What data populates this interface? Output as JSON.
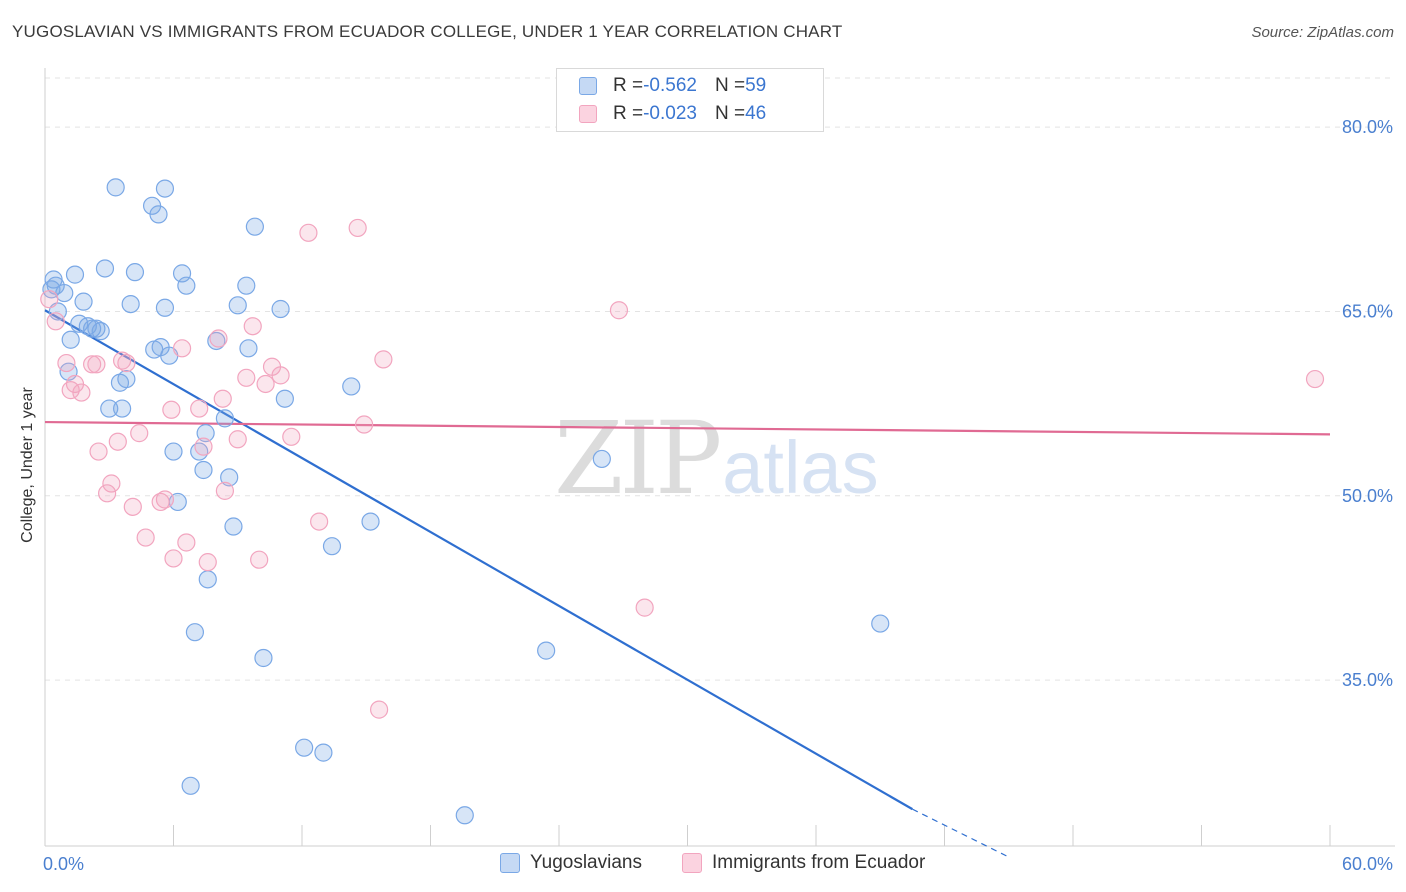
{
  "title": "YUGOSLAVIAN VS IMMIGRANTS FROM ECUADOR COLLEGE, UNDER 1 YEAR CORRELATION CHART",
  "source": "Source: ZipAtlas.com",
  "watermark": {
    "zip": "ZIP",
    "atlas": "atlas"
  },
  "chart_data": {
    "type": "scatter",
    "ylabel": "College, Under 1 year",
    "xlim": [
      0,
      60
    ],
    "ylim": [
      21.5,
      84
    ],
    "x_tick_labels": [
      "0.0%",
      "60.0%"
    ],
    "y_ticks": [
      35,
      50,
      65,
      80
    ],
    "y_tick_labels": [
      "35.0%",
      "50.0%",
      "65.0%",
      "80.0%"
    ],
    "grid": true,
    "legend_position": "top-center",
    "series": [
      {
        "name": "Yugoslavians",
        "color": "#7aa8e6",
        "line_color": "#2f6fd0",
        "R": "-0.562",
        "N": "59",
        "trend": {
          "x0": 0,
          "y0": 65.1,
          "x1": 40.5,
          "y1": 24.5,
          "dash_x1": 45,
          "dash_y1": 20.6
        },
        "points": [
          [
            0.3,
            66.8
          ],
          [
            0.4,
            67.6
          ],
          [
            0.5,
            67.1
          ],
          [
            0.6,
            65.0
          ],
          [
            0.9,
            66.5
          ],
          [
            1.1,
            60.1
          ],
          [
            1.2,
            62.7
          ],
          [
            1.4,
            68.0
          ],
          [
            1.6,
            64.0
          ],
          [
            1.8,
            65.8
          ],
          [
            2.0,
            63.8
          ],
          [
            2.2,
            63.6
          ],
          [
            2.4,
            63.6
          ],
          [
            2.6,
            63.4
          ],
          [
            2.8,
            68.5
          ],
          [
            3.0,
            57.1
          ],
          [
            3.5,
            59.2
          ],
          [
            3.6,
            57.1
          ],
          [
            3.8,
            59.5
          ],
          [
            4.0,
            65.6
          ],
          [
            4.2,
            68.2
          ],
          [
            3.3,
            75.1
          ],
          [
            5.0,
            73.6
          ],
          [
            5.3,
            72.9
          ],
          [
            5.1,
            61.9
          ],
          [
            5.4,
            62.1
          ],
          [
            5.6,
            65.3
          ],
          [
            5.8,
            61.4
          ],
          [
            5.6,
            75.0
          ],
          [
            6.0,
            53.6
          ],
          [
            6.2,
            49.5
          ],
          [
            6.4,
            68.1
          ],
          [
            6.6,
            67.1
          ],
          [
            7.0,
            38.9
          ],
          [
            6.8,
            26.4
          ],
          [
            7.2,
            53.6
          ],
          [
            7.4,
            52.1
          ],
          [
            7.5,
            55.1
          ],
          [
            7.6,
            43.2
          ],
          [
            8.0,
            62.6
          ],
          [
            8.4,
            56.3
          ],
          [
            8.6,
            51.5
          ],
          [
            8.8,
            47.5
          ],
          [
            9.0,
            65.5
          ],
          [
            9.4,
            67.1
          ],
          [
            9.5,
            62.0
          ],
          [
            9.8,
            71.9
          ],
          [
            10.2,
            36.8
          ],
          [
            11.0,
            65.2
          ],
          [
            11.2,
            57.9
          ],
          [
            12.1,
            29.5
          ],
          [
            13.0,
            29.1
          ],
          [
            13.4,
            45.9
          ],
          [
            14.3,
            58.9
          ],
          [
            15.2,
            47.9
          ],
          [
            19.6,
            24.0
          ],
          [
            23.4,
            37.4
          ],
          [
            26.0,
            53.0
          ],
          [
            39.0,
            39.6
          ]
        ]
      },
      {
        "name": "Immigrants from Ecuador",
        "color": "#f2a5bf",
        "line_color": "#e06a93",
        "R": "-0.023",
        "N": "46",
        "trend": {
          "x0": 0,
          "y0": 56.0,
          "x1": 60,
          "y1": 55.0
        },
        "points": [
          [
            0.2,
            66.0
          ],
          [
            0.5,
            64.2
          ],
          [
            1.0,
            60.8
          ],
          [
            1.2,
            58.6
          ],
          [
            1.4,
            59.1
          ],
          [
            1.7,
            58.4
          ],
          [
            2.2,
            60.7
          ],
          [
            2.4,
            60.7
          ],
          [
            2.5,
            53.6
          ],
          [
            2.9,
            50.2
          ],
          [
            3.1,
            51.0
          ],
          [
            3.4,
            54.4
          ],
          [
            3.6,
            61.0
          ],
          [
            3.8,
            60.8
          ],
          [
            4.1,
            49.1
          ],
          [
            4.4,
            55.1
          ],
          [
            4.7,
            46.6
          ],
          [
            5.4,
            49.5
          ],
          [
            5.6,
            49.7
          ],
          [
            5.9,
            57.0
          ],
          [
            6.0,
            44.9
          ],
          [
            6.4,
            62.0
          ],
          [
            6.6,
            46.2
          ],
          [
            7.2,
            57.1
          ],
          [
            7.4,
            54.0
          ],
          [
            7.6,
            44.6
          ],
          [
            8.1,
            62.8
          ],
          [
            8.3,
            57.9
          ],
          [
            8.4,
            50.4
          ],
          [
            9.0,
            54.6
          ],
          [
            9.4,
            59.6
          ],
          [
            9.7,
            63.8
          ],
          [
            10.0,
            44.8
          ],
          [
            10.3,
            59.1
          ],
          [
            10.6,
            60.5
          ],
          [
            11.0,
            59.8
          ],
          [
            11.5,
            54.8
          ],
          [
            12.3,
            71.4
          ],
          [
            12.8,
            47.9
          ],
          [
            14.6,
            71.8
          ],
          [
            14.9,
            55.8
          ],
          [
            15.6,
            32.6
          ],
          [
            15.8,
            61.1
          ],
          [
            26.8,
            65.1
          ],
          [
            28.0,
            40.9
          ],
          [
            59.3,
            59.5
          ]
        ]
      }
    ]
  }
}
